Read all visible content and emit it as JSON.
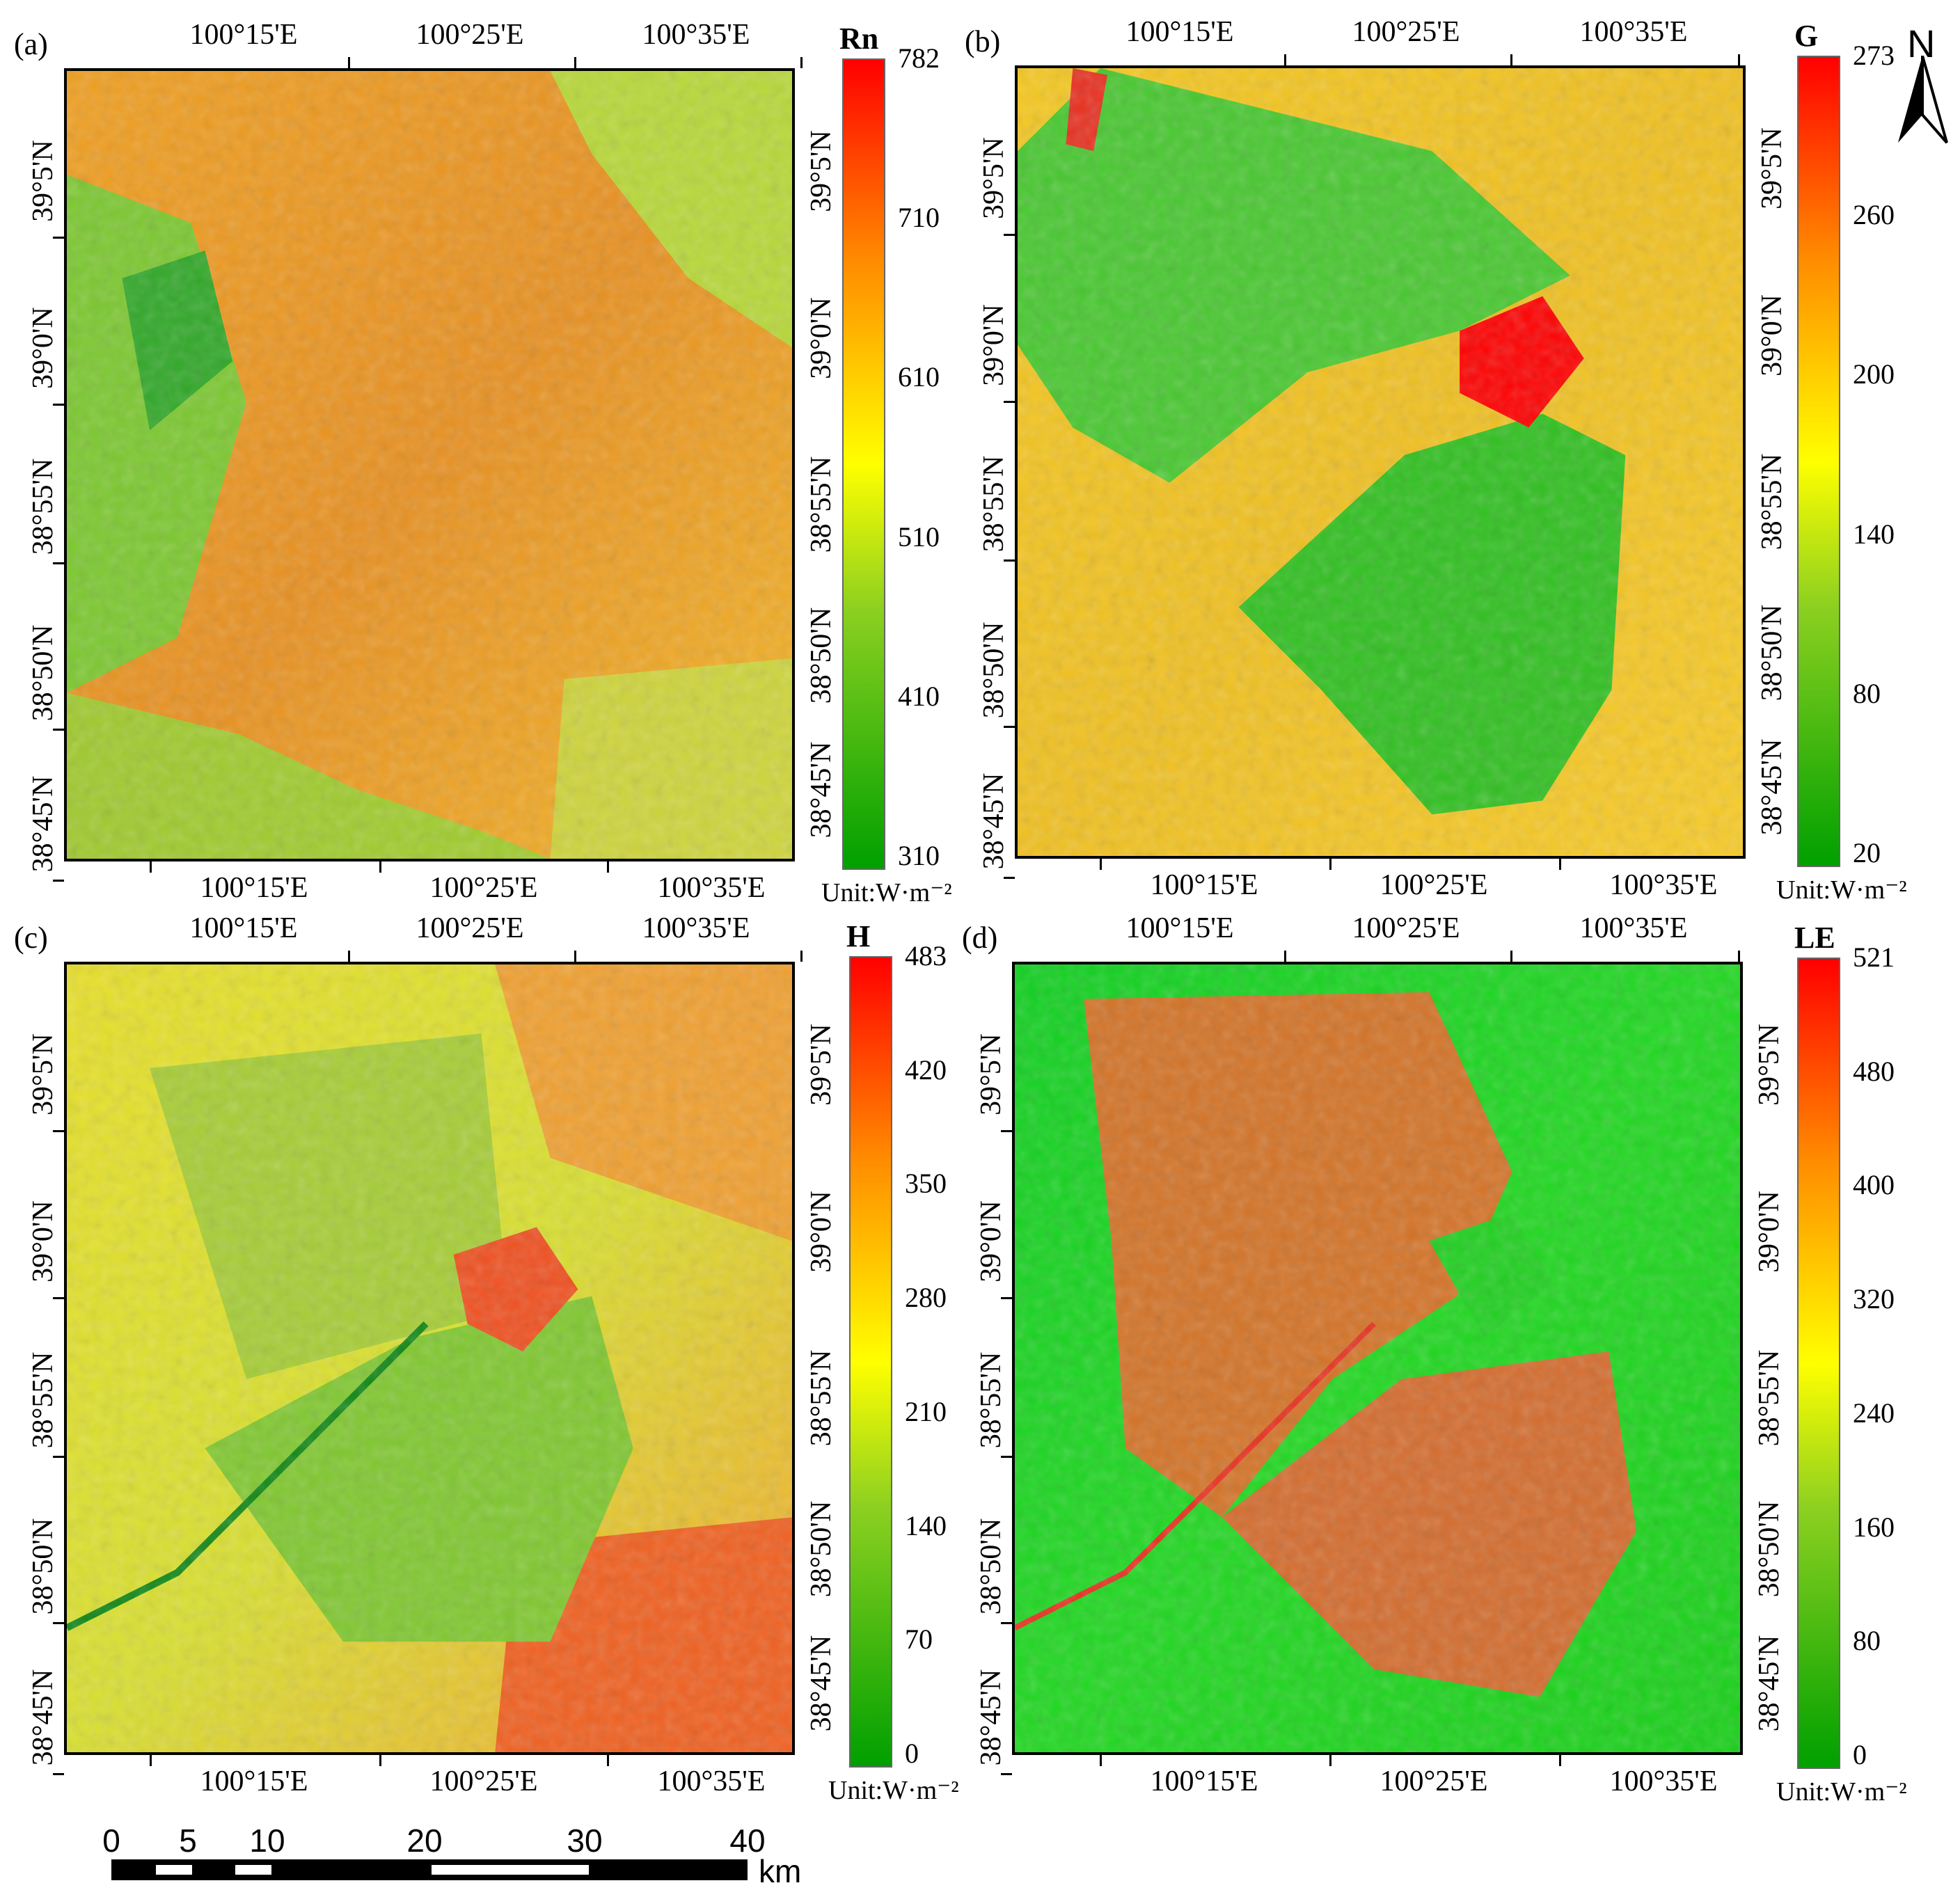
{
  "panels": [
    {
      "label": "(a)",
      "var": "Rn",
      "top_ticks": [
        "100°15'E",
        "100°25'E",
        "100°35'E"
      ],
      "bottom_ticks": [
        "100°15'E",
        "100°25'E",
        "100°35'E"
      ],
      "left_ticks": [
        "39°5'N",
        "39°0'N",
        "38°55'N",
        "38°50'N",
        "38°45'N"
      ],
      "right_ticks": [
        "39°5'N",
        "39°0'N",
        "38°55'N",
        "38°50'N",
        "38°45'N"
      ],
      "legend_values": [
        "782",
        "710",
        "610",
        "510",
        "410",
        "310"
      ],
      "legend_min": 310,
      "legend_max": 782,
      "unit": "Unit:W·m⁻²"
    },
    {
      "label": "(b)",
      "var": "G",
      "top_ticks": [
        "100°15'E",
        "100°25'E",
        "100°35'E"
      ],
      "bottom_ticks": [
        "100°15'E",
        "100°25'E",
        "100°35'E"
      ],
      "left_ticks": [
        "39°5'N",
        "39°0'N",
        "38°55'N",
        "38°50'N",
        "38°45'N"
      ],
      "right_ticks": [
        "39°5'N",
        "39°0'N",
        "38°55'N",
        "38°50'N",
        "38°45'N"
      ],
      "legend_values": [
        "273",
        "260",
        "200",
        "140",
        "80",
        "20"
      ],
      "legend_min": 20,
      "legend_max": 273,
      "unit": "Unit:W·m⁻²"
    },
    {
      "label": "(c)",
      "var": "H",
      "top_ticks": [
        "100°15'E",
        "100°25'E",
        "100°35'E"
      ],
      "bottom_ticks": [
        "100°15'E",
        "100°25'E",
        "100°35'E"
      ],
      "left_ticks": [
        "39°5'N",
        "39°0'N",
        "38°55'N",
        "38°50'N",
        "38°45'N"
      ],
      "right_ticks": [
        "39°5'N",
        "39°0'N",
        "38°55'N",
        "38°50'N",
        "38°45'N"
      ],
      "legend_values": [
        "483",
        "420",
        "350",
        "280",
        "210",
        "140",
        "70",
        "0"
      ],
      "legend_min": 0,
      "legend_max": 483,
      "unit": "Unit:W·m⁻²"
    },
    {
      "label": "(d)",
      "var": "LE",
      "top_ticks": [
        "100°15'E",
        "100°25'E",
        "100°35'E"
      ],
      "bottom_ticks": [
        "100°15'E",
        "100°25'E",
        "100°35'E"
      ],
      "left_ticks": [
        "39°5'N",
        "39°0'N",
        "38°55'N",
        "38°50'N",
        "38°45'N"
      ],
      "right_ticks": [
        "39°5'N",
        "39°0'N",
        "38°55'N",
        "38°50'N",
        "38°45'N"
      ],
      "legend_values": [
        "521",
        "480",
        "400",
        "320",
        "240",
        "160",
        "80",
        "0"
      ],
      "legend_min": 0,
      "legend_max": 521,
      "unit": "Unit:W·m⁻²"
    }
  ],
  "north_arrow": {
    "label": "N"
  },
  "scale_bar": {
    "labels": [
      "0",
      "5",
      "10",
      "20",
      "30",
      "40"
    ],
    "unit": "km"
  },
  "colors": {
    "low": "#00a000",
    "mid": "#ffff00",
    "high": "#ff0000",
    "orange": "#ff8c00"
  }
}
